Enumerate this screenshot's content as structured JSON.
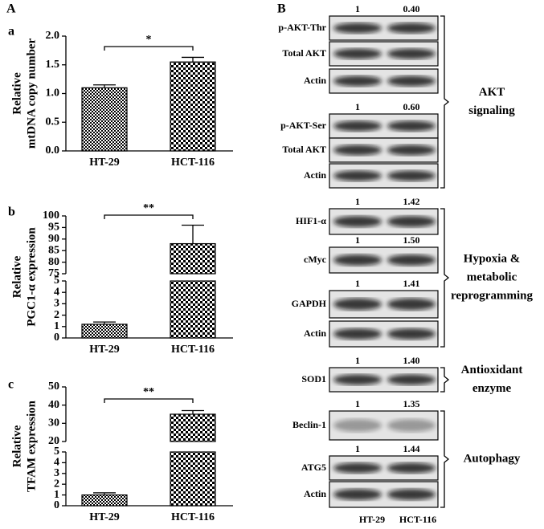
{
  "figure_label": "A",
  "chart_data": [
    {
      "type": "bar",
      "panel": "a",
      "color": "#000000",
      "ylabel": [
        "Relative",
        "mtDNA copy number"
      ],
      "categories": [
        "HT-29",
        "HCT-116"
      ],
      "values": [
        1.1,
        1.55
      ],
      "errors": [
        0.05,
        0.08
      ],
      "significance": "*",
      "ylim": [
        0,
        2
      ],
      "yticks": [
        {
          "value": 0,
          "label": "0.0"
        },
        0.5,
        {
          "value": 1,
          "label": "1.0"
        },
        1.5,
        {
          "value": 2,
          "label": "2.0"
        }
      ]
    },
    {
      "type": "bar",
      "panel": "b",
      "color": "#000000",
      "ylabel": [
        "Relative",
        "PGC1-α  expression"
      ],
      "categories": [
        "HT-29",
        "HCT-116"
      ],
      "values": [
        1.2,
        88
      ],
      "errors": [
        0.2,
        8
      ],
      "significance": "**",
      "segments": [
        {
          "ylim": [
            0,
            5
          ],
          "yticks": [
            0,
            1,
            2,
            3,
            4,
            5
          ]
        },
        {
          "ylim": [
            75,
            100
          ],
          "yticks": [
            75,
            80,
            85,
            90,
            95,
            100
          ]
        }
      ]
    },
    {
      "type": "bar",
      "panel": "c",
      "color": "#000000",
      "ylabel": [
        "Relative",
        "TFAM  expression"
      ],
      "categories": [
        "HT-29",
        "HCT-116"
      ],
      "values": [
        1,
        35
      ],
      "errors": [
        0.2,
        2
      ],
      "significance": "**",
      "segments": [
        {
          "ylim": [
            0,
            5
          ],
          "yticks": [
            0,
            1,
            2,
            3,
            4,
            5
          ]
        },
        {
          "ylim": [
            20,
            50
          ],
          "yticks": [
            20,
            30,
            40,
            50
          ]
        }
      ]
    }
  ],
  "blots": {
    "panel": "B",
    "groups": [
      {
        "label": [
          "AKT",
          "signaling"
        ],
        "rows": [
          {
            "label": "p-AKT-Thr",
            "quant": [
              "1",
              "0.40"
            ]
          },
          {
            "label": "Total AKT"
          },
          {
            "label": "Actin"
          },
          {
            "label": "p-AKT-Ser",
            "quant": [
              "1",
              "0.60"
            ]
          },
          {
            "label": "Total AKT"
          },
          {
            "label": "Actin"
          }
        ]
      },
      {
        "label": [
          "Hypoxia &",
          "metabolic",
          "reprogramming"
        ],
        "rows": [
          {
            "label": "HIF1-α",
            "quant": [
              "1",
              "1.42"
            ]
          },
          {
            "label": "cMyc",
            "quant": [
              "1",
              "1.50"
            ]
          },
          {
            "label": "GAPDH",
            "quant": [
              "1",
              "1.41"
            ]
          },
          {
            "label": "Actin"
          }
        ]
      },
      {
        "label": [
          "Antioxidant",
          "enzyme"
        ],
        "rows": [
          {
            "label": "SOD1",
            "quant": [
              "1",
              "1.40"
            ]
          }
        ]
      },
      {
        "label": [
          "Autophagy"
        ],
        "rows": [
          {
            "label": "Beclin-1",
            "quant": [
              "1",
              "1.35"
            ]
          },
          {
            "label": "ATG5",
            "quant": [
              "1",
              "1.44"
            ]
          },
          {
            "label": "Actin"
          }
        ]
      }
    ],
    "lanes": [
      "HT-29",
      "HCT-116"
    ]
  }
}
